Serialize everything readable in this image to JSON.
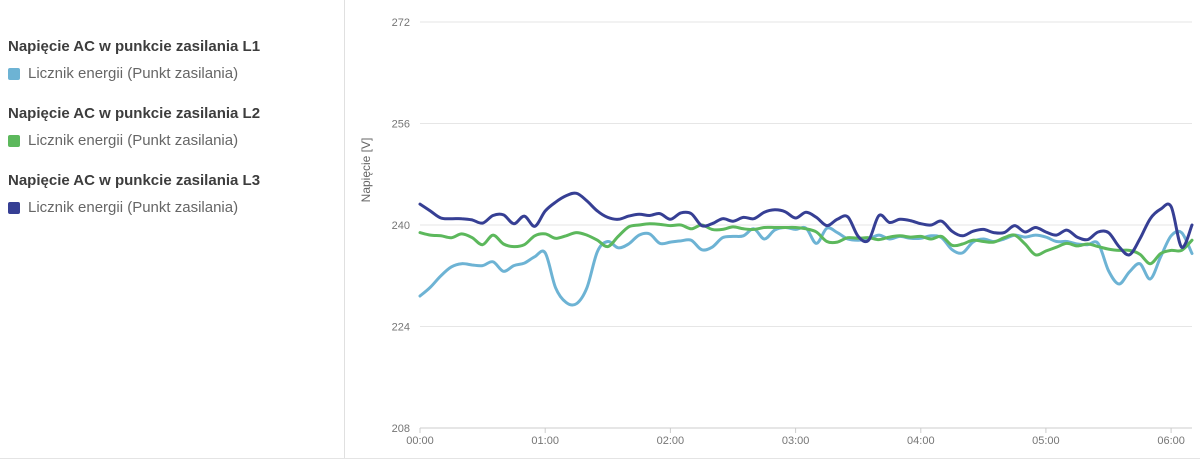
{
  "legend": {
    "groups": [
      {
        "id": "l1",
        "title": "Napięcie AC w punkcie zasilania L1",
        "series_label": "Licznik energii (Punkt zasilania)",
        "color": "#6db3d4"
      },
      {
        "id": "l2",
        "title": "Napięcie AC w punkcie zasilania L2",
        "series_label": "Licznik energii (Punkt zasilania)",
        "color": "#5cb85c"
      },
      {
        "id": "l3",
        "title": "Napięcie AC w punkcie zasilania L3",
        "series_label": "Licznik energii (Punkt zasilania)",
        "color": "#363f94"
      }
    ]
  },
  "chart_data": {
    "type": "line",
    "title": "",
    "xlabel": "",
    "ylabel": "Napięcie [V]",
    "ylim": [
      208,
      272
    ],
    "yticks": [
      272,
      256,
      240,
      224,
      208
    ],
    "xtick_labels": [
      "00:00",
      "01:00",
      "02:00",
      "03:00",
      "04:00",
      "05:00",
      "06:00"
    ],
    "xtick_minutes": [
      0,
      60,
      120,
      180,
      240,
      300,
      360
    ],
    "xlim_minutes": [
      0,
      370
    ],
    "grid": "horizontal",
    "legend_position": "left-panel",
    "grid_color": "#e6e6e6",
    "axis_color": "#cccccc",
    "x_minutes": [
      0,
      5,
      10,
      15,
      20,
      25,
      30,
      35,
      40,
      45,
      50,
      55,
      60,
      65,
      70,
      75,
      80,
      85,
      90,
      95,
      100,
      105,
      110,
      115,
      120,
      125,
      130,
      135,
      140,
      145,
      150,
      155,
      160,
      165,
      170,
      175,
      180,
      185,
      190,
      195,
      200,
      205,
      210,
      215,
      220,
      225,
      230,
      235,
      240,
      245,
      250,
      255,
      260,
      265,
      270,
      275,
      280,
      285,
      290,
      295,
      300,
      305,
      310,
      315,
      320,
      325,
      330,
      335,
      340,
      345,
      350,
      355,
      360,
      365,
      370
    ],
    "series": [
      {
        "id": "l1",
        "name": "Napięcie AC w punkcie zasilania L1 — Licznik energii (Punkt zasilania)",
        "color": "#6db3d4",
        "values": [
          228.8,
          230.2,
          232.0,
          233.4,
          233.9,
          233.7,
          233.6,
          234.2,
          232.7,
          233.6,
          234.0,
          235.0,
          235.6,
          230.1,
          227.8,
          227.6,
          230.1,
          235.8,
          237.4,
          236.4,
          237.0,
          238.4,
          238.6,
          237.1,
          237.3,
          237.5,
          237.6,
          236.1,
          236.5,
          238.0,
          238.2,
          238.3,
          239.4,
          237.8,
          239.2,
          239.6,
          239.3,
          239.5,
          237.1,
          239.5,
          238.8,
          237.8,
          237.6,
          237.8,
          238.4,
          237.8,
          238.2,
          237.9,
          237.9,
          238.3,
          238.0,
          236.1,
          235.6,
          237.3,
          237.8,
          237.4,
          237.8,
          238.4,
          238.1,
          238.4,
          238.1,
          237.4,
          237.4,
          237.0,
          236.9,
          237.1,
          232.8,
          230.7,
          232.6,
          233.9,
          231.5,
          235.0,
          238.3,
          238.8,
          235.5
        ]
      },
      {
        "id": "l2",
        "name": "Napięcie AC w punkcie zasilania L2 — Licznik energii (Punkt zasilania)",
        "color": "#5cb85c",
        "values": [
          238.8,
          238.4,
          238.3,
          238.0,
          238.6,
          238.0,
          236.9,
          238.4,
          237.0,
          236.6,
          236.9,
          238.3,
          238.6,
          237.9,
          238.3,
          238.8,
          238.4,
          237.6,
          236.6,
          238.2,
          239.7,
          240.0,
          240.2,
          240.1,
          239.9,
          240.0,
          239.4,
          240.0,
          239.3,
          239.3,
          239.7,
          239.4,
          239.3,
          239.6,
          239.6,
          239.6,
          239.6,
          239.4,
          238.9,
          237.4,
          237.3,
          238.0,
          237.9,
          238.0,
          237.7,
          238.1,
          238.3,
          238.1,
          238.2,
          237.8,
          238.2,
          236.8,
          237.0,
          237.6,
          237.4,
          237.3,
          238.0,
          238.4,
          237.0,
          235.3,
          235.9,
          236.5,
          237.1,
          236.7,
          237.0,
          236.6,
          236.2,
          236.0,
          236.0,
          235.4,
          233.9,
          235.5,
          236.0,
          236.0,
          237.6
        ]
      },
      {
        "id": "l3",
        "name": "Napięcie AC w punkcie zasilania L3 — Licznik energii (Punkt zasilania)",
        "color": "#363f94",
        "values": [
          243.3,
          242.2,
          241.1,
          241.0,
          241.0,
          240.8,
          240.3,
          241.5,
          241.6,
          240.2,
          241.4,
          239.8,
          242.2,
          243.6,
          244.6,
          245.0,
          243.8,
          242.2,
          241.2,
          240.9,
          241.4,
          241.7,
          241.5,
          241.8,
          240.9,
          241.9,
          241.8,
          239.9,
          240.2,
          241.0,
          240.6,
          241.2,
          241.0,
          242.0,
          242.4,
          242.1,
          241.1,
          242.0,
          241.2,
          239.9,
          240.9,
          241.3,
          238.2,
          237.6,
          241.5,
          240.4,
          240.9,
          240.7,
          240.2,
          240.0,
          240.6,
          239.0,
          238.3,
          239.0,
          239.3,
          238.8,
          238.8,
          239.9,
          238.9,
          239.6,
          238.9,
          238.4,
          239.2,
          238.1,
          237.7,
          238.9,
          238.8,
          236.6,
          235.3,
          237.8,
          241.0,
          242.5,
          242.9,
          236.5,
          240.0
        ]
      }
    ]
  }
}
